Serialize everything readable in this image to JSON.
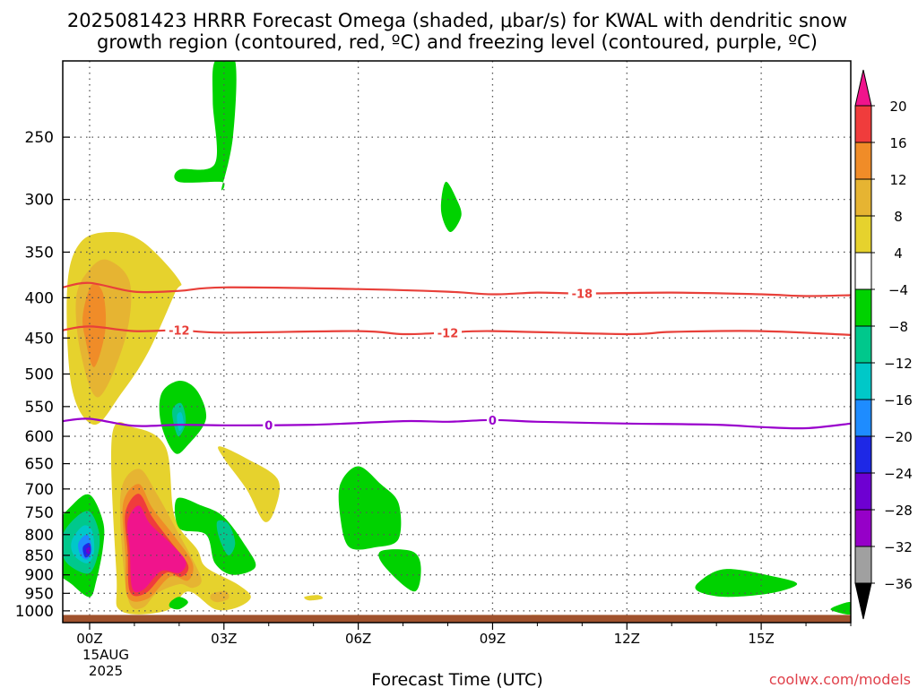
{
  "title_line1": "2025081423 HRRR Forecast Omega (shaded, μbar/s) for KWAL with dendritic snow",
  "title_line2": "growth region (contoured, red, ºC) and freezing level (contoured, purple, ºC)",
  "xlabel": "Forecast Time (UTC)",
  "credit": "coolwx.com/models",
  "date_label": [
    "15AUG",
    "2025"
  ],
  "chart_data": {
    "type": "time-height contour",
    "x_ticks": [
      {
        "hour": 0,
        "label": "00Z"
      },
      {
        "hour": 3,
        "label": "03Z"
      },
      {
        "hour": 6,
        "label": "06Z"
      },
      {
        "hour": 9,
        "label": "09Z"
      },
      {
        "hour": 12,
        "label": "12Z"
      },
      {
        "hour": 15,
        "label": "15Z"
      }
    ],
    "xlim_hours": [
      -0.6,
      17
    ],
    "y_ticks": [
      250,
      300,
      350,
      400,
      450,
      500,
      550,
      600,
      650,
      700,
      750,
      800,
      850,
      900,
      950,
      1000
    ],
    "ylim_mb": [
      200,
      1035
    ],
    "y_scale": "log-pressure",
    "colorbar": {
      "bounds": [
        -36,
        -32,
        -28,
        -24,
        -20,
        -16,
        -12,
        -8,
        -4,
        4,
        8,
        12,
        16,
        20
      ],
      "labels": [
        "20",
        "16",
        "12",
        "8",
        "4",
        "−4",
        "−8",
        "−12",
        "−16",
        "−20",
        "−24",
        "−28",
        "−32",
        "−36"
      ],
      "colors": [
        "#f0148c",
        "#f03c3c",
        "#f08c28",
        "#e6b432",
        "#e6d22d",
        "#ffffff",
        "#00d200",
        "#00c88c",
        "#00c8c8",
        "#1e8cff",
        "#1e28e6",
        "#6e00d2",
        "#9600c8",
        "#a0a0a0"
      ]
    },
    "contours": [
      {
        "label": "-18",
        "color": "#e8403a",
        "points": [
          [
            -0.6,
            388
          ],
          [
            0,
            383
          ],
          [
            1,
            393
          ],
          [
            2,
            392
          ],
          [
            3,
            388
          ],
          [
            6,
            390
          ],
          [
            8,
            393
          ],
          [
            9,
            396
          ],
          [
            10,
            394
          ],
          [
            11,
            395
          ],
          [
            13,
            394
          ],
          [
            15,
            396
          ],
          [
            16,
            398
          ],
          [
            17,
            397
          ]
        ],
        "label_at": 11
      },
      {
        "label": "-12",
        "color": "#e8403a",
        "points": [
          [
            -0.6,
            440
          ],
          [
            0,
            435
          ],
          [
            1,
            441
          ],
          [
            2,
            440
          ],
          [
            3,
            443
          ],
          [
            6,
            441
          ],
          [
            7,
            445
          ],
          [
            8,
            443
          ],
          [
            9,
            441
          ],
          [
            12,
            445
          ],
          [
            13,
            442
          ],
          [
            15,
            441
          ],
          [
            17,
            446
          ]
        ],
        "label_at": 2
      },
      {
        "label": "-12",
        "color": "#e8403a",
        "points": [],
        "label_at": 8
      },
      {
        "label": "0",
        "color": "#9900cc",
        "points": [
          [
            -0.6,
            574
          ],
          [
            0,
            570
          ],
          [
            1,
            582
          ],
          [
            2,
            580
          ],
          [
            3,
            581
          ],
          [
            5,
            580
          ],
          [
            7,
            574
          ],
          [
            8,
            575
          ],
          [
            9,
            572
          ],
          [
            10,
            575
          ],
          [
            12,
            578
          ],
          [
            14,
            580
          ],
          [
            15,
            584
          ],
          [
            16,
            586
          ],
          [
            17,
            578
          ]
        ],
        "label_at": 4
      },
      {
        "label": "0",
        "color": "#9900cc",
        "points": [],
        "label_at": 9
      }
    ],
    "omega_regions": [
      {
        "value": 4,
        "points": [
          [
            -0.5,
            388
          ],
          [
            -0.2,
            340
          ],
          [
            0.5,
            330
          ],
          [
            1.2,
            340
          ],
          [
            2,
            380
          ],
          [
            1.9,
            395
          ],
          [
            1.3,
            470
          ],
          [
            0.7,
            530
          ],
          [
            0.1,
            580
          ],
          [
            -0.4,
            520
          ]
        ]
      },
      {
        "value": 8,
        "points": [
          [
            -0.3,
            400
          ],
          [
            0,
            368
          ],
          [
            0.4,
            358
          ],
          [
            0.9,
            383
          ],
          [
            0.8,
            450
          ],
          [
            0.2,
            535
          ],
          [
            -0.2,
            470
          ]
        ]
      },
      {
        "value": 12,
        "points": [
          [
            -0.15,
            420
          ],
          [
            0.05,
            385
          ],
          [
            0.3,
            395
          ],
          [
            0.35,
            440
          ],
          [
            0.1,
            490
          ],
          [
            -0.1,
            450
          ]
        ]
      },
      {
        "value": 4,
        "points": [
          [
            0.5,
            600
          ],
          [
            1,
            585
          ],
          [
            1.7,
            620
          ],
          [
            1.9,
            760
          ],
          [
            2.4,
            835
          ],
          [
            2.6,
            880
          ],
          [
            3.3,
            925
          ],
          [
            3.6,
            960
          ],
          [
            3.3,
            990
          ],
          [
            2.8,
            995
          ],
          [
            2.2,
            945
          ],
          [
            1.7,
            1000
          ],
          [
            0.7,
            1000
          ],
          [
            0.6,
            900
          ]
        ]
      },
      {
        "value": 8,
        "points": [
          [
            0.7,
            705
          ],
          [
            1.1,
            660
          ],
          [
            1.5,
            710
          ],
          [
            2,
            800
          ],
          [
            2.3,
            860
          ],
          [
            2.5,
            915
          ],
          [
            2.3,
            935
          ],
          [
            2,
            925
          ],
          [
            1.5,
            950
          ],
          [
            1.2,
            990
          ],
          [
            0.9,
            980
          ],
          [
            0.75,
            870
          ]
        ]
      },
      {
        "value": 12,
        "points": [
          [
            0.75,
            730
          ],
          [
            1.1,
            690
          ],
          [
            1.4,
            740
          ],
          [
            1.9,
            805
          ],
          [
            2.3,
            870
          ],
          [
            2.2,
            915
          ],
          [
            1.8,
            905
          ],
          [
            1.3,
            965
          ],
          [
            0.85,
            960
          ],
          [
            0.8,
            850
          ]
        ]
      },
      {
        "value": 16,
        "points": [
          [
            0.8,
            750
          ],
          [
            1.1,
            710
          ],
          [
            1.4,
            760
          ],
          [
            1.8,
            815
          ],
          [
            2.2,
            875
          ],
          [
            2.05,
            905
          ],
          [
            1.7,
            895
          ],
          [
            1.25,
            950
          ],
          [
            0.9,
            945
          ],
          [
            0.85,
            840
          ]
        ]
      },
      {
        "value": 20,
        "points": [
          [
            0.85,
            770
          ],
          [
            1.1,
            735
          ],
          [
            1.35,
            775
          ],
          [
            1.8,
            820
          ],
          [
            2.15,
            865
          ],
          [
            2,
            895
          ],
          [
            1.6,
            890
          ],
          [
            1.2,
            940
          ],
          [
            0.95,
            935
          ],
          [
            0.9,
            840
          ]
        ]
      },
      {
        "value": 4,
        "points": [
          [
            2.9,
            618
          ],
          [
            3.5,
            640
          ],
          [
            4.2,
            680
          ],
          [
            4.15,
            740
          ],
          [
            3.9,
            770
          ],
          [
            3.5,
            700
          ],
          [
            3,
            640
          ]
        ]
      },
      {
        "value": 4,
        "points": [
          [
            2.6,
            945
          ],
          [
            2.9,
            935
          ],
          [
            3.3,
            955
          ],
          [
            3.1,
            980
          ],
          [
            2.7,
            975
          ]
        ]
      },
      {
        "value": 8,
        "points": [
          [
            2.75,
            950
          ],
          [
            3.05,
            945
          ],
          [
            3.1,
            965
          ],
          [
            2.85,
            975
          ],
          [
            2.7,
            965
          ]
        ]
      },
      {
        "value": 4,
        "points": [
          [
            4.8,
            960
          ],
          [
            5.1,
            955
          ],
          [
            5.2,
            965
          ],
          [
            4.9,
            970
          ]
        ]
      },
      {
        "value": 4,
        "points": [
          [
            9.9,
            1012
          ],
          [
            10.6,
            1014
          ],
          [
            10.6,
            1018
          ],
          [
            9.9,
            1016
          ]
        ]
      },
      {
        "value": -4,
        "points": [
          [
            2.8,
            200
          ],
          [
            3.25,
            200
          ],
          [
            3.2,
            250
          ],
          [
            2.95,
            290
          ],
          [
            2.95,
            285
          ],
          [
            2,
            285
          ],
          [
            2,
            275
          ],
          [
            2.8,
            270
          ],
          [
            2.75,
            225
          ]
        ]
      },
      {
        "value": -4,
        "points": [
          [
            7.95,
            285
          ],
          [
            8.2,
            300
          ],
          [
            8.3,
            315
          ],
          [
            8.05,
            330
          ],
          [
            7.85,
            310
          ]
        ]
      },
      {
        "value": -4,
        "points": [
          [
            -0.8,
            790
          ],
          [
            -0.4,
            735
          ],
          [
            0,
            712
          ],
          [
            0.3,
            770
          ],
          [
            0.3,
            830
          ],
          [
            0.15,
            915
          ],
          [
            0,
            960
          ],
          [
            -0.4,
            925
          ],
          [
            -0.8,
            880
          ]
        ]
      },
      {
        "value": -8,
        "points": [
          [
            -0.6,
            800
          ],
          [
            -0.3,
            760
          ],
          [
            0,
            748
          ],
          [
            0.2,
            790
          ],
          [
            0.2,
            840
          ],
          [
            0,
            895
          ],
          [
            -0.4,
            880
          ],
          [
            -0.6,
            850
          ]
        ]
      },
      {
        "value": -12,
        "points": [
          [
            -0.4,
            815
          ],
          [
            -0.15,
            780
          ],
          [
            0.05,
            790
          ],
          [
            0.1,
            840
          ],
          [
            -0.05,
            870
          ],
          [
            -0.35,
            850
          ]
        ]
      },
      {
        "value": -16,
        "points": [
          [
            -0.25,
            820
          ],
          [
            -0.05,
            800
          ],
          [
            0.05,
            835
          ],
          [
            -0.05,
            860
          ],
          [
            -0.2,
            850
          ]
        ]
      },
      {
        "value": -20,
        "points": [
          [
            -0.15,
            830
          ],
          [
            0,
            820
          ],
          [
            0.02,
            845
          ],
          [
            -0.1,
            855
          ]
        ]
      },
      {
        "value": -24,
        "points": [
          [
            -0.08,
            835
          ],
          [
            0,
            830
          ],
          [
            0,
            845
          ],
          [
            -0.06,
            845
          ]
        ]
      },
      {
        "value": -4,
        "points": [
          [
            1.6,
            530
          ],
          [
            2,
            510
          ],
          [
            2.4,
            525
          ],
          [
            2.6,
            570
          ],
          [
            2.2,
            615
          ],
          [
            1.9,
            630
          ],
          [
            1.6,
            580
          ]
        ]
      },
      {
        "value": -8,
        "points": [
          [
            1.85,
            555
          ],
          [
            2.05,
            545
          ],
          [
            2.15,
            575
          ],
          [
            2,
            600
          ],
          [
            1.9,
            585
          ]
        ]
      },
      {
        "value": -12,
        "points": [
          [
            1.95,
            565
          ],
          [
            2.05,
            560
          ],
          [
            2.1,
            580
          ],
          [
            2,
            590
          ]
        ]
      },
      {
        "value": -4,
        "points": [
          [
            1.95,
            720
          ],
          [
            2.5,
            735
          ],
          [
            3,
            760
          ],
          [
            3.5,
            830
          ],
          [
            3.7,
            880
          ],
          [
            3.2,
            900
          ],
          [
            2.8,
            870
          ],
          [
            2.6,
            800
          ],
          [
            2,
            785
          ]
        ]
      },
      {
        "value": -8,
        "points": [
          [
            2.85,
            770
          ],
          [
            3.1,
            775
          ],
          [
            3.25,
            820
          ],
          [
            3.1,
            850
          ],
          [
            2.9,
            810
          ]
        ]
      },
      {
        "value": -4,
        "points": [
          [
            1.8,
            975
          ],
          [
            2.0,
            960
          ],
          [
            2.2,
            975
          ],
          [
            2.0,
            995
          ],
          [
            1.8,
            990
          ]
        ]
      },
      {
        "value": -4,
        "points": [
          [
            5.6,
            690
          ],
          [
            6,
            655
          ],
          [
            6.5,
            690
          ],
          [
            6.9,
            730
          ],
          [
            6.9,
            810
          ],
          [
            6.4,
            830
          ],
          [
            5.8,
            830
          ],
          [
            5.6,
            760
          ]
        ]
      },
      {
        "value": -4,
        "points": [
          [
            6.5,
            840
          ],
          [
            7.2,
            840
          ],
          [
            7.4,
            880
          ],
          [
            7.25,
            945
          ],
          [
            6.6,
            880
          ]
        ]
      },
      {
        "value": -4,
        "points": [
          [
            13.6,
            920
          ],
          [
            14.2,
            885
          ],
          [
            15.3,
            905
          ],
          [
            15.8,
            925
          ],
          [
            15.2,
            950
          ],
          [
            14.2,
            960
          ],
          [
            13.6,
            945
          ]
        ]
      },
      {
        "value": -4,
        "points": [
          [
            16.6,
            990
          ],
          [
            17,
            975
          ],
          [
            17,
            1010
          ],
          [
            16.6,
            1000
          ]
        ]
      }
    ],
    "ground": {
      "level_mb": 1012,
      "color": "#a0522d"
    }
  }
}
